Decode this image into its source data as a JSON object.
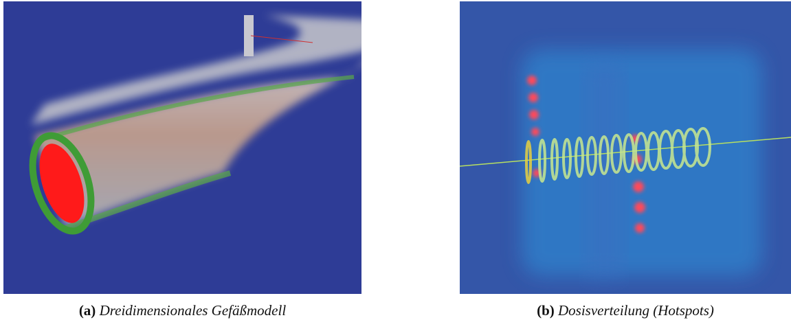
{
  "figures": [
    {
      "label": "(a)",
      "caption": "Dreidimensionales Gefäßmodell"
    },
    {
      "label": "(b)",
      "caption": "Dosisverteilung (Hotspots)"
    }
  ]
}
